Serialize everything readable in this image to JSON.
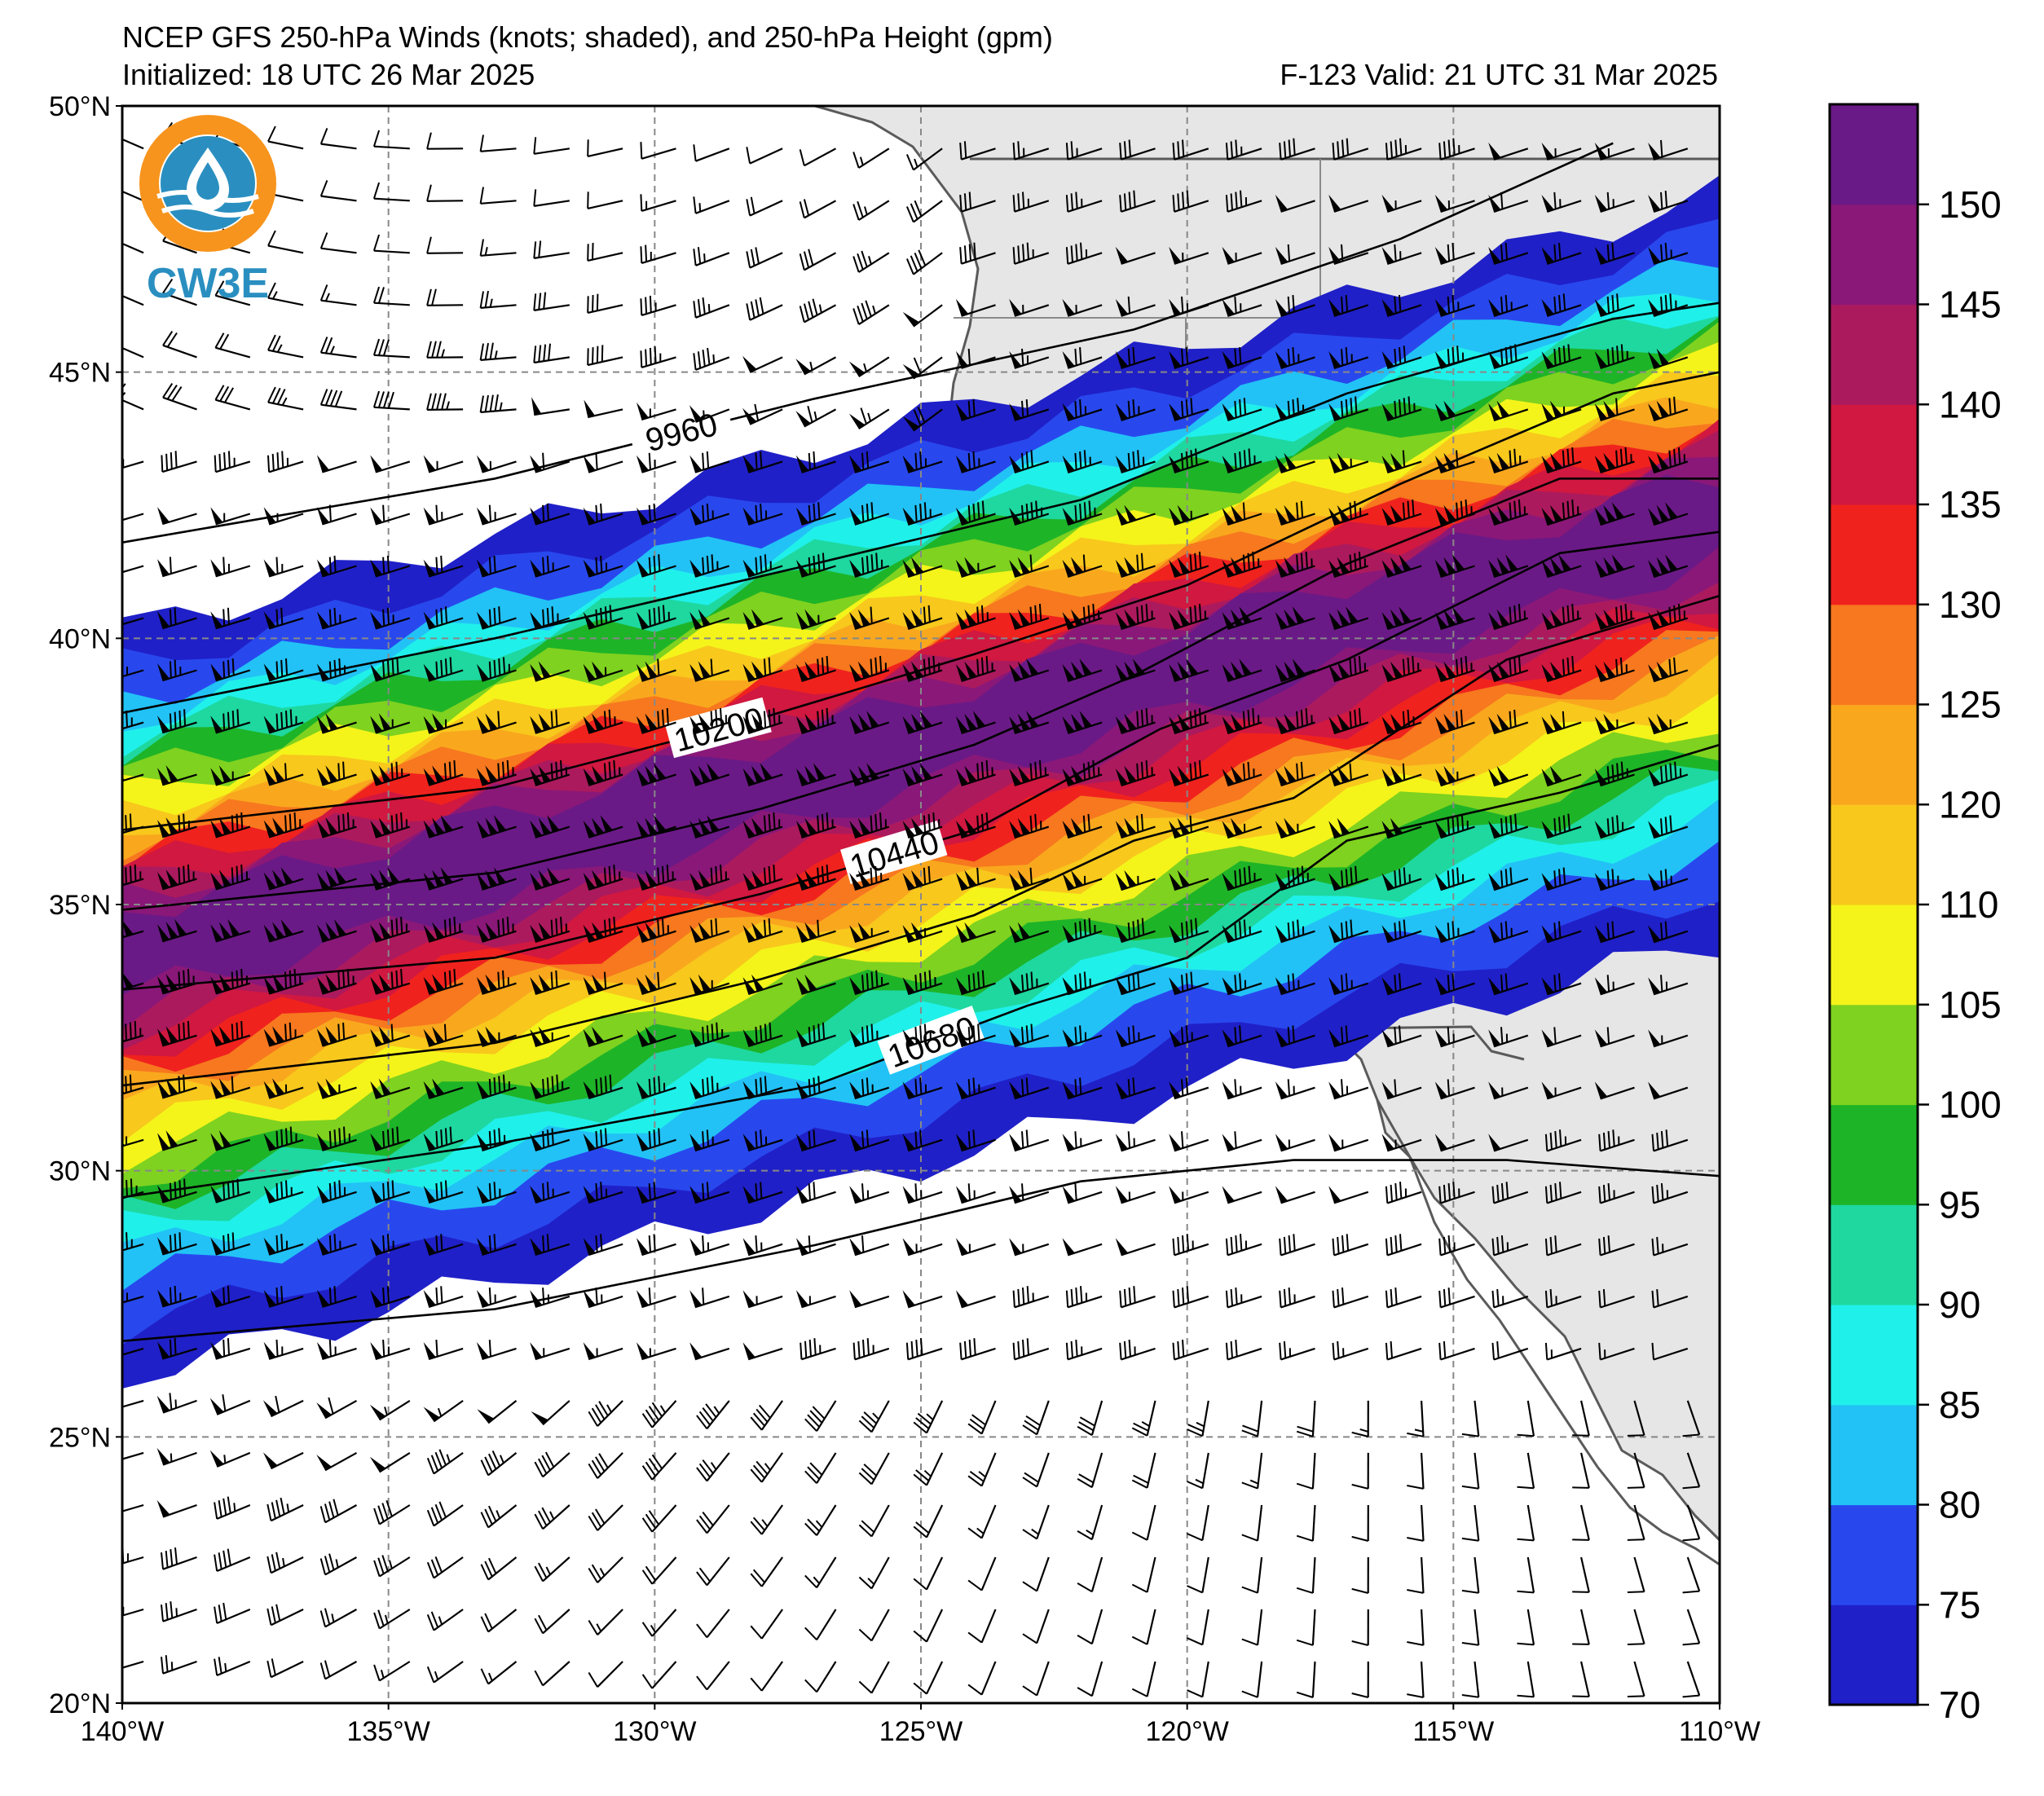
{
  "header": {
    "title": "NCEP GFS 250-hPa Winds (knots; shaded), and 250-hPa Height (gpm)",
    "initialized": "Initialized: 18 UTC 26 Mar 2025",
    "valid": "F-123  Valid: 21 UTC 31 Mar 2025"
  },
  "logo": {
    "text": "CW3E",
    "ring_color": "#f7941d",
    "drop_color": "#2a8fc0"
  },
  "map": {
    "lon_range": [
      -140,
      -110
    ],
    "lat_range": [
      20,
      50
    ],
    "lon_ticks": [
      {
        "lon": -140,
        "label": "140°W"
      },
      {
        "lon": -135,
        "label": "135°W"
      },
      {
        "lon": -130,
        "label": "130°W"
      },
      {
        "lon": -125,
        "label": "125°W"
      },
      {
        "lon": -120,
        "label": "120°W"
      },
      {
        "lon": -115,
        "label": "115°W"
      },
      {
        "lon": -110,
        "label": "110°W"
      }
    ],
    "lat_ticks": [
      {
        "lat": 50,
        "label": "50°N"
      },
      {
        "lat": 45,
        "label": "45°N"
      },
      {
        "lat": 40,
        "label": "40°N"
      },
      {
        "lat": 35,
        "label": "35°N"
      },
      {
        "lat": 30,
        "label": "30°N"
      },
      {
        "lat": 25,
        "label": "25°N"
      },
      {
        "lat": 20,
        "label": "20°N"
      }
    ],
    "height_contours": [
      {
        "label": "9960",
        "label_lon": -129.5,
        "points": [
          [
            -140,
            41.8
          ],
          [
            -133,
            43.0
          ],
          [
            -127,
            44.5
          ],
          [
            -121,
            45.8
          ],
          [
            -116,
            47.5
          ],
          [
            -112,
            49.3
          ]
        ]
      },
      {
        "label": "",
        "points": [
          [
            -140,
            38.6
          ],
          [
            -133,
            40.0
          ],
          [
            -127,
            41.4
          ],
          [
            -122,
            42.6
          ],
          [
            -117,
            44.6
          ],
          [
            -112,
            46.0
          ],
          [
            -110,
            46.3
          ]
        ]
      },
      {
        "label": "10200",
        "label_lon": -128.8,
        "points": [
          [
            -140,
            36.4
          ],
          [
            -133,
            37.2
          ],
          [
            -128,
            38.5
          ],
          [
            -124,
            39.7
          ],
          [
            -120,
            41.0
          ],
          [
            -116,
            42.9
          ],
          [
            -112,
            44.6
          ],
          [
            -110,
            45.0
          ]
        ]
      },
      {
        "label": "",
        "points": [
          [
            -140,
            34.9
          ],
          [
            -133,
            35.6
          ],
          [
            -128,
            36.8
          ],
          [
            -124,
            38.0
          ],
          [
            -121,
            39.3
          ],
          [
            -117,
            41.4
          ],
          [
            -113,
            43.0
          ],
          [
            -110,
            43.0
          ]
        ]
      },
      {
        "label": "10440",
        "label_lon": -125.5,
        "points": [
          [
            -140,
            33.4
          ],
          [
            -133,
            34.0
          ],
          [
            -128,
            35.2
          ],
          [
            -124,
            36.4
          ],
          [
            -120.5,
            38.3
          ],
          [
            -117,
            39.6
          ],
          [
            -113,
            41.6
          ],
          [
            -110,
            42.0
          ]
        ]
      },
      {
        "label": "",
        "points": [
          [
            -140,
            31.6
          ],
          [
            -133,
            32.4
          ],
          [
            -128,
            33.6
          ],
          [
            -124,
            34.8
          ],
          [
            -121,
            36.2
          ],
          [
            -118,
            37.0
          ],
          [
            -114,
            39.6
          ],
          [
            -110,
            40.8
          ]
        ]
      },
      {
        "label": "10680",
        "label_lon": -124.8,
        "points": [
          [
            -140,
            29.5
          ],
          [
            -133,
            30.5
          ],
          [
            -127,
            31.6
          ],
          [
            -123,
            33.1
          ],
          [
            -120,
            34.0
          ],
          [
            -117,
            36.2
          ],
          [
            -113,
            37.1
          ],
          [
            -110,
            38.0
          ]
        ]
      },
      {
        "label": "",
        "points": [
          [
            -140,
            26.8
          ],
          [
            -133,
            27.4
          ],
          [
            -127,
            28.6
          ],
          [
            -122,
            29.8
          ],
          [
            -118,
            30.2
          ],
          [
            -114,
            30.2
          ],
          [
            -110,
            29.9
          ]
        ]
      }
    ]
  },
  "colorbar": {
    "ticks": [
      70,
      75,
      80,
      85,
      90,
      95,
      100,
      105,
      110,
      120,
      125,
      130,
      135,
      140,
      145,
      150
    ],
    "bands": [
      {
        "from": 70,
        "to": 75,
        "color": "#2020c8"
      },
      {
        "from": 75,
        "to": 80,
        "color": "#2848ee"
      },
      {
        "from": 80,
        "to": 85,
        "color": "#22c2f6"
      },
      {
        "from": 85,
        "to": 90,
        "color": "#20f0ea"
      },
      {
        "from": 90,
        "to": 95,
        "color": "#1ed8a0"
      },
      {
        "from": 95,
        "to": 100,
        "color": "#1eb428"
      },
      {
        "from": 100,
        "to": 105,
        "color": "#7fd21f"
      },
      {
        "from": 105,
        "to": 110,
        "color": "#f4f41a"
      },
      {
        "from": 110,
        "to": 120,
        "color": "#f8c81c"
      },
      {
        "from": 120,
        "to": 125,
        "color": "#f9a81e"
      },
      {
        "from": 125,
        "to": 130,
        "color": "#f7781e"
      },
      {
        "from": 130,
        "to": 135,
        "color": "#f0221e"
      },
      {
        "from": 135,
        "to": 140,
        "color": "#d01840"
      },
      {
        "from": 140,
        "to": 145,
        "color": "#ac1a5e"
      },
      {
        "from": 145,
        "to": 150,
        "color": "#8a1878"
      },
      {
        "from": 150,
        "to": 155,
        "color": "#6a1a86"
      }
    ]
  },
  "colors": {
    "land": "#e6e6e6",
    "ocean": "#ffffff",
    "coast": "#5a5a5a",
    "grid": "#888888"
  }
}
